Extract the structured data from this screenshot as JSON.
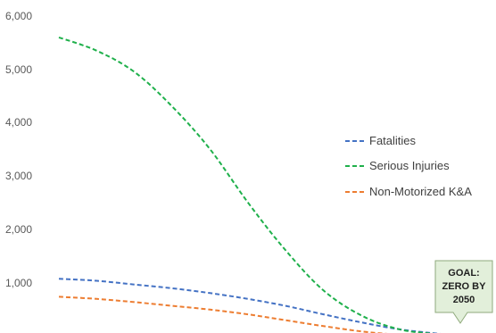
{
  "chart_data": {
    "type": "line",
    "xlabel": "",
    "ylabel": "",
    "ylim": [
      0,
      6000
    ],
    "xlim": [
      2018,
      2050
    ],
    "yticks": [
      "6,000",
      "5,000",
      "4,000",
      "3,000",
      "2,000",
      "1,000"
    ],
    "grid": false,
    "legend_position": "right",
    "series": [
      {
        "name": "Fatalities",
        "color": "#4472c4",
        "line_style": "dashed",
        "x": [
          2018,
          2021,
          2024,
          2027,
          2030,
          2033,
          2036,
          2039,
          2042,
          2045,
          2048,
          2050
        ],
        "values": [
          1070,
          1030,
          960,
          890,
          800,
          690,
          560,
          400,
          250,
          120,
          40,
          0
        ]
      },
      {
        "name": "Serious Injuries",
        "color": "#1fb04b",
        "line_style": "dashed",
        "x": [
          2018,
          2021,
          2024,
          2027,
          2030,
          2033,
          2036,
          2039,
          2042,
          2045,
          2048,
          2050
        ],
        "values": [
          5600,
          5350,
          4950,
          4300,
          3500,
          2500,
          1600,
          850,
          380,
          120,
          30,
          0
        ]
      },
      {
        "name": "Non-Motorized K&A",
        "color": "#ed7d31",
        "line_style": "dashed",
        "x": [
          2018,
          2021,
          2024,
          2027,
          2030,
          2033,
          2036,
          2039,
          2042,
          2045,
          2048,
          2050
        ],
        "values": [
          730,
          690,
          630,
          560,
          490,
          400,
          290,
          180,
          80,
          20,
          5,
          0
        ]
      }
    ],
    "annotations": [
      {
        "text_lines": [
          "GOAL:",
          "ZERO BY",
          "2050"
        ],
        "fill": "#e2efda",
        "border": "#8faa7c"
      }
    ]
  }
}
